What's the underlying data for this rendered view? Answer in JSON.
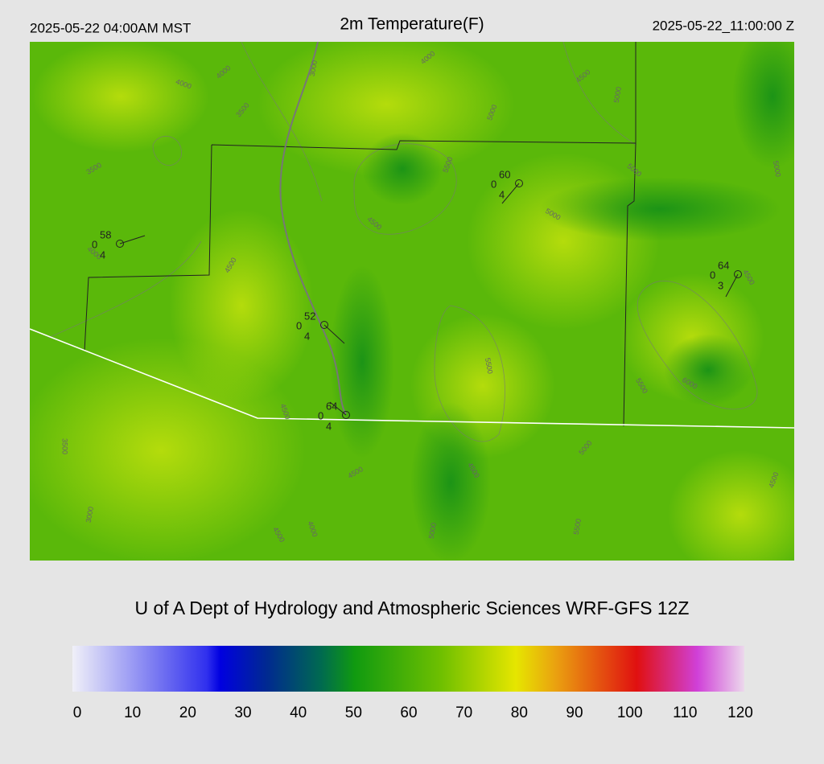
{
  "header": {
    "local_time": "2025-05-22 04:00AM MST",
    "title": "2m Temperature(F)",
    "utc_time": "2025-05-22_11:00:00 Z"
  },
  "map": {
    "contour_labels": [
      4000,
      4000,
      3000,
      4000,
      4500,
      5000,
      3500,
      5000,
      3500,
      5500,
      5000,
      5000,
      4500,
      4000,
      4500,
      4500,
      5500,
      6000,
      5500,
      4500,
      3500,
      5000,
      4500,
      4500,
      4500,
      3000,
      4000,
      4500,
      5000,
      5500,
      5000
    ],
    "stations": [
      {
        "temperature": 58,
        "left": 0,
        "bottom": 4
      },
      {
        "temperature": 60,
        "left": 0,
        "bottom": 4
      },
      {
        "temperature": 64,
        "left": 0,
        "bottom": 3
      },
      {
        "temperature": 52,
        "left": 0,
        "bottom": 4
      },
      {
        "temperature": 64,
        "left": 0,
        "bottom": 4
      }
    ]
  },
  "credit": "U of A Dept of Hydrology and Atmospheric Sciences WRF-GFS 12Z",
  "colorbar": {
    "lim": [
      0,
      120
    ],
    "ticks": [
      0,
      10,
      20,
      30,
      40,
      50,
      60,
      70,
      80,
      90,
      100,
      110,
      120
    ]
  }
}
